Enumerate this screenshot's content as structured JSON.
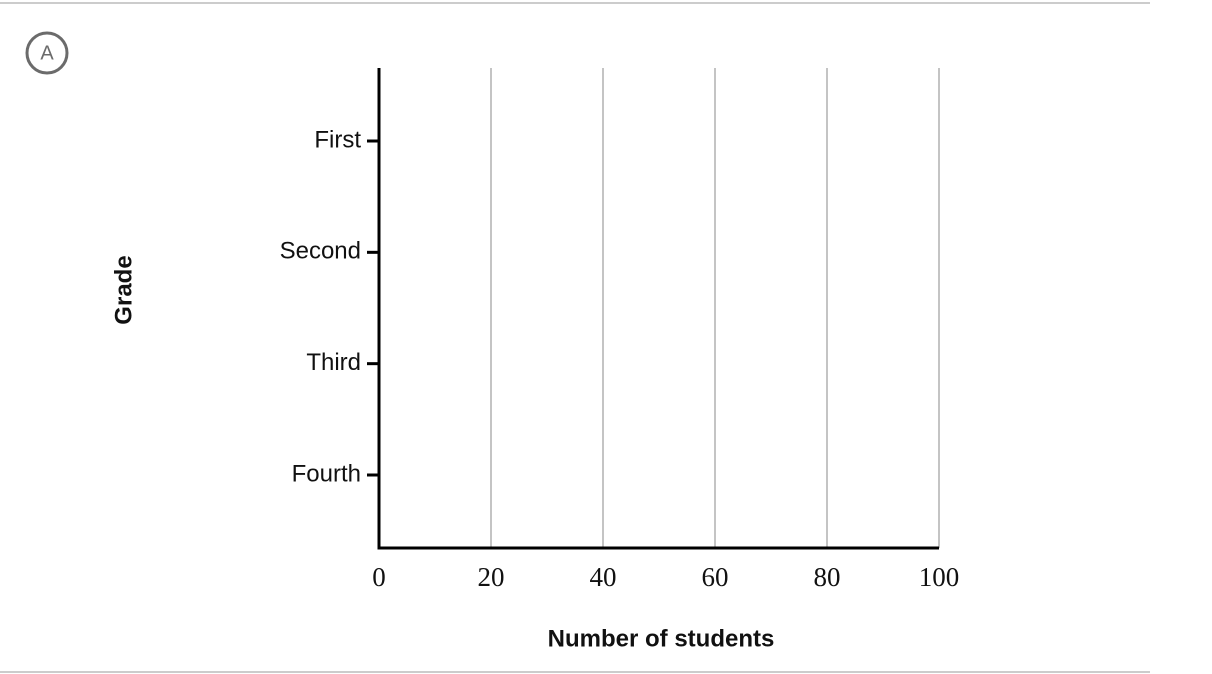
{
  "choice_label": "A",
  "chart_data": {
    "type": "bar",
    "orientation": "horizontal",
    "categories": [
      "First",
      "Second",
      "Third",
      "Fourth"
    ],
    "xlabel": "Number of students",
    "ylabel": "Grade",
    "xlim": [
      0,
      100
    ],
    "xticks": [
      0,
      20,
      40,
      60,
      80,
      100
    ],
    "grid": true
  }
}
